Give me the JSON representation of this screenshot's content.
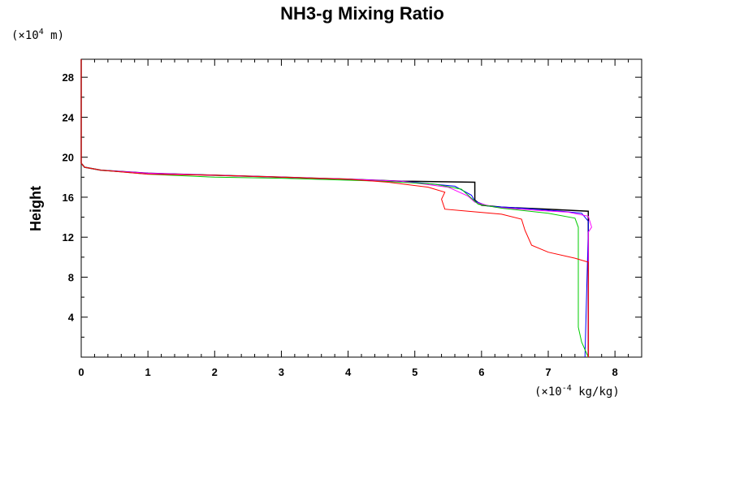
{
  "chart_data": {
    "type": "line",
    "title": "NH3-g Mixing Ratio",
    "ylabel": "Height",
    "x_unit": "(×10",
    "x_unit_exp": "-4",
    "x_unit_tail": " kg/kg)",
    "y_unit": "(×10",
    "y_unit_exp": "4",
    "y_unit_tail": " m)",
    "xlim": [
      0,
      8.4
    ],
    "ylim": [
      0,
      29.8
    ],
    "x_ticks": [
      0,
      1,
      2,
      3,
      4,
      5,
      6,
      7,
      8
    ],
    "y_ticks": [
      4,
      8,
      12,
      16,
      20,
      24,
      28
    ],
    "grid": false,
    "series": [
      {
        "color": "#000000",
        "points": [
          [
            0,
            29.8
          ],
          [
            0,
            19.4
          ],
          [
            0.05,
            19.0
          ],
          [
            0.3,
            18.7
          ],
          [
            1.0,
            18.4
          ],
          [
            2.0,
            18.2
          ],
          [
            3.0,
            18.0
          ],
          [
            4.0,
            17.8
          ],
          [
            4.8,
            17.6
          ],
          [
            5.9,
            17.5
          ],
          [
            5.9,
            15.7
          ],
          [
            6.0,
            15.2
          ],
          [
            6.3,
            15.0
          ],
          [
            7.0,
            14.8
          ],
          [
            7.6,
            14.6
          ],
          [
            7.6,
            0
          ]
        ]
      },
      {
        "color": "#0000ff",
        "points": [
          [
            0,
            29.8
          ],
          [
            0,
            19.4
          ],
          [
            0.05,
            19.0
          ],
          [
            0.3,
            18.7
          ],
          [
            1.0,
            18.4
          ],
          [
            2.0,
            18.2
          ],
          [
            3.0,
            18.0
          ],
          [
            4.0,
            17.8
          ],
          [
            4.8,
            17.6
          ],
          [
            5.6,
            17.1
          ],
          [
            5.85,
            16.2
          ],
          [
            5.9,
            15.6
          ],
          [
            6.1,
            15.1
          ],
          [
            6.6,
            14.9
          ],
          [
            7.2,
            14.6
          ],
          [
            7.5,
            14.4
          ],
          [
            7.6,
            13.6
          ],
          [
            7.6,
            12.8
          ],
          [
            7.55,
            0
          ]
        ]
      },
      {
        "color": "#ff00ff",
        "points": [
          [
            0,
            29.8
          ],
          [
            0,
            19.4
          ],
          [
            0.05,
            19.0
          ],
          [
            0.3,
            18.7
          ],
          [
            1.0,
            18.4
          ],
          [
            2.0,
            18.2
          ],
          [
            3.0,
            18.0
          ],
          [
            4.0,
            17.8
          ],
          [
            4.8,
            17.6
          ],
          [
            5.5,
            17.0
          ],
          [
            5.8,
            16.1
          ],
          [
            5.9,
            15.5
          ],
          [
            6.2,
            15.0
          ],
          [
            6.8,
            14.7
          ],
          [
            7.3,
            14.5
          ],
          [
            7.6,
            14.1
          ],
          [
            7.65,
            13.0
          ],
          [
            7.6,
            12.5
          ],
          [
            7.6,
            0
          ]
        ]
      },
      {
        "color": "#00cc00",
        "points": [
          [
            0,
            29.8
          ],
          [
            0,
            19.4
          ],
          [
            0.05,
            19.0
          ],
          [
            0.3,
            18.7
          ],
          [
            1.0,
            18.3
          ],
          [
            2.0,
            18.0
          ],
          [
            3.0,
            17.9
          ],
          [
            4.0,
            17.7
          ],
          [
            4.5,
            17.6
          ],
          [
            5.3,
            17.3
          ],
          [
            5.7,
            16.8
          ],
          [
            5.85,
            15.9
          ],
          [
            5.95,
            15.3
          ],
          [
            6.3,
            14.9
          ],
          [
            7.0,
            14.4
          ],
          [
            7.4,
            13.9
          ],
          [
            7.45,
            13.0
          ],
          [
            7.45,
            8.0
          ],
          [
            7.45,
            3.0
          ],
          [
            7.5,
            1.5
          ],
          [
            7.6,
            0
          ]
        ]
      },
      {
        "color": "#ff0000",
        "points": [
          [
            0,
            29.8
          ],
          [
            0,
            19.4
          ],
          [
            0.05,
            19.0
          ],
          [
            0.3,
            18.7
          ],
          [
            1.0,
            18.3
          ],
          [
            2.0,
            18.2
          ],
          [
            3.0,
            18.0
          ],
          [
            4.0,
            17.8
          ],
          [
            4.6,
            17.5
          ],
          [
            5.2,
            17.0
          ],
          [
            5.45,
            16.5
          ],
          [
            5.4,
            15.8
          ],
          [
            5.45,
            14.8
          ],
          [
            5.8,
            14.6
          ],
          [
            6.3,
            14.3
          ],
          [
            6.6,
            13.8
          ],
          [
            6.65,
            12.7
          ],
          [
            6.75,
            11.2
          ],
          [
            7.0,
            10.5
          ],
          [
            7.4,
            9.9
          ],
          [
            7.6,
            9.5
          ],
          [
            7.6,
            0
          ]
        ]
      }
    ]
  }
}
